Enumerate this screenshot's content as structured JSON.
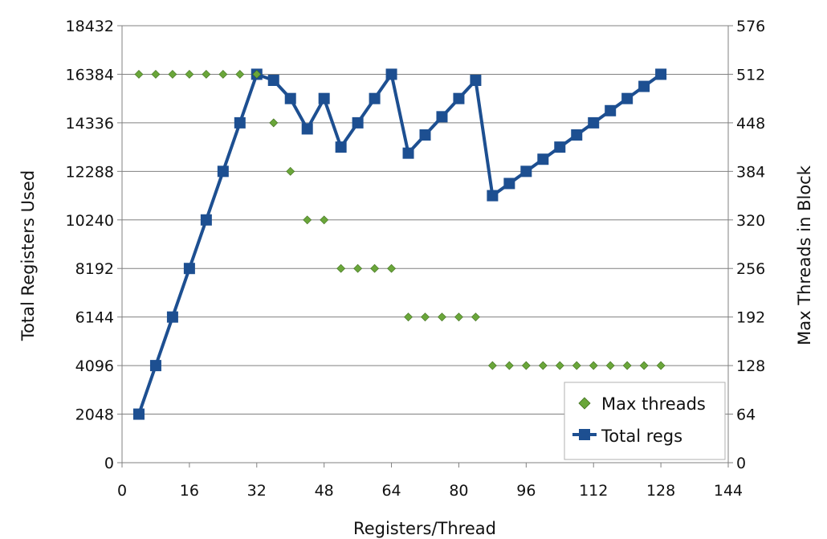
{
  "chart_data": {
    "type": "line",
    "xlabel": "Registers/Thread",
    "ylabel": "Total Registers Used",
    "y2label": "Max Threads in Block",
    "xlim": [
      0,
      144
    ],
    "xticks": [
      0,
      16,
      32,
      48,
      64,
      80,
      96,
      112,
      128,
      144
    ],
    "ylim": [
      0,
      18432
    ],
    "yticks": [
      0,
      2048,
      4096,
      6144,
      8192,
      10240,
      12288,
      14336,
      16384,
      18432
    ],
    "y2lim": [
      0,
      576
    ],
    "y2ticks": [
      0,
      64,
      128,
      192,
      256,
      320,
      384,
      448,
      512,
      576
    ],
    "grid": "horizontal",
    "legend_position": "bottom-right",
    "x": [
      4,
      8,
      12,
      16,
      20,
      24,
      28,
      32,
      36,
      40,
      44,
      48,
      52,
      56,
      60,
      64,
      68,
      72,
      76,
      80,
      84,
      88,
      92,
      96,
      100,
      104,
      108,
      112,
      116,
      120,
      124,
      128
    ],
    "series": [
      {
        "name": "Max threads",
        "axis": "right",
        "marker": "diamond",
        "color": "#6aa63a",
        "values": [
          512,
          512,
          512,
          512,
          512,
          512,
          512,
          512,
          448,
          384,
          320,
          320,
          256,
          256,
          256,
          256,
          192,
          192,
          192,
          192,
          192,
          128,
          128,
          128,
          128,
          128,
          128,
          128,
          128,
          128,
          128,
          128
        ]
      },
      {
        "name": "Total regs",
        "axis": "left",
        "marker": "square",
        "color": "#1d4f91",
        "values": [
          2048,
          4096,
          6144,
          8192,
          10240,
          12288,
          14336,
          16384,
          16128,
          15360,
          14080,
          15360,
          13312,
          14336,
          15360,
          16384,
          13056,
          13824,
          14592,
          15360,
          16128,
          11264,
          11776,
          12288,
          12800,
          13312,
          13824,
          14336,
          14848,
          15360,
          15872,
          16384
        ]
      }
    ]
  }
}
